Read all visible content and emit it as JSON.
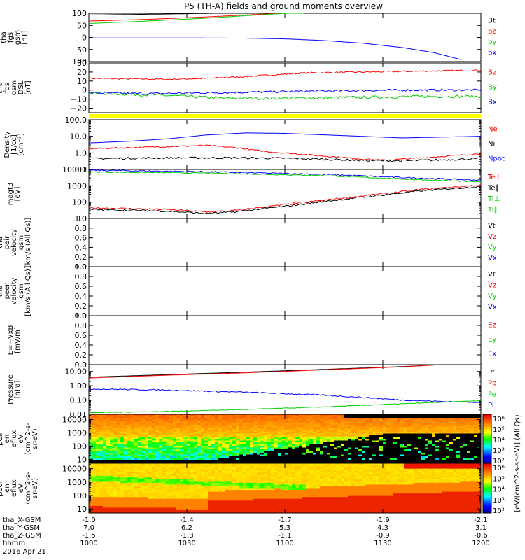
{
  "title": "P5 (TH-A) fields and ground moments overview",
  "footer": {
    "rows": [
      {
        "label": "tha_X-GSM",
        "values": [
          "7.0",
          "6.2",
          "5.3",
          "4.3",
          "3.1"
        ]
      },
      {
        "label": "tha_Y-GSM",
        "values": [
          "-1.5",
          "-1.3",
          "-1.1",
          "-0.9",
          "-0.6"
        ]
      },
      {
        "label": "tha_Z-GSM",
        "values": [
          "1000",
          "1030",
          "1100",
          "1130",
          "1200"
        ]
      },
      {
        "label": "hhmm",
        "values": []
      }
    ],
    "first_row_values": [
      "-1.0",
      "-1.4",
      "-1.7",
      "-1.9",
      "-2.1"
    ],
    "date": "2016 Apr 21"
  },
  "colorbar": {
    "label": "[eV/(cm^2-s-sr-eV)] (All Qs)",
    "upper_ticks": [
      "10⁶",
      "10⁵",
      "10⁴",
      "10³",
      "10²"
    ],
    "lower_ticks": [
      "10⁶",
      "10⁵",
      "10⁴",
      "10³",
      "10²"
    ]
  },
  "chart_data": {
    "type": "line",
    "time_range": [
      "1000",
      "1200"
    ],
    "time_ticks": [
      "1000",
      "1030",
      "1100",
      "1130",
      "1200"
    ],
    "panels": [
      {
        "id": "p1",
        "ylabel": [
          "tha",
          "fgs",
          "gsm",
          "[nT]"
        ],
        "ylim": [
          -100,
          100
        ],
        "log": false,
        "yticks": [
          {
            "v": 100,
            "t": "100"
          },
          {
            "v": 50,
            "t": "50"
          },
          {
            "v": 0,
            "t": "0"
          },
          {
            "v": -50,
            "t": "−50"
          },
          {
            "v": -100,
            "t": "−100"
          }
        ],
        "legend": [
          {
            "label": "Bt",
            "color": "#000000"
          },
          {
            "label": "bz",
            "color": "#ff0000"
          },
          {
            "label": "by",
            "color": "#00cc00"
          },
          {
            "label": "bx",
            "color": "#0000ff"
          }
        ],
        "series": [
          {
            "color": "#000000",
            "t": [
              0,
              0.2,
              0.4,
              0.55,
              0.62
            ],
            "y": [
              93,
              97,
              102,
              106,
              108
            ]
          },
          {
            "color": "#ff0000",
            "t": [
              0,
              0.15,
              0.3,
              0.45,
              0.53
            ],
            "y": [
              68,
              75,
              85,
              97,
              104
            ]
          },
          {
            "color": "#00cc00",
            "t": [
              0,
              0.15,
              0.3,
              0.45,
              0.55
            ],
            "y": [
              58,
              68,
              80,
              95,
              104
            ]
          },
          {
            "color": "#0000ff",
            "t": [
              0,
              0.2,
              0.4,
              0.5,
              0.6,
              0.7,
              0.8,
              0.88,
              0.95
            ],
            "y": [
              -2,
              -2,
              -3,
              -6,
              -13,
              -24,
              -42,
              -63,
              -92
            ]
          }
        ]
      },
      {
        "id": "p2",
        "ylabel": [
          "tha",
          "fgs",
          "gsm",
          "DSL",
          "[nT]"
        ],
        "ylim": [
          -25,
          30
        ],
        "log": false,
        "yticks": [
          {
            "v": 30,
            "t": "30"
          },
          {
            "v": 20,
            "t": "20"
          },
          {
            "v": 10,
            "t": "10"
          },
          {
            "v": 0,
            "t": "0"
          },
          {
            "v": -10,
            "t": "−10"
          },
          {
            "v": -20,
            "t": "−20"
          }
        ],
        "legend": [
          {
            "label": "Bz",
            "color": "#ff0000"
          },
          {
            "label": "By",
            "color": "#00cc00"
          },
          {
            "label": "Bx",
            "color": "#0000ff"
          }
        ],
        "series": [
          {
            "color": "#ff0000",
            "noise": 0.8,
            "t": [
              0,
              0.2,
              0.3,
              0.4,
              0.55,
              0.7,
              0.85,
              1
            ],
            "y": [
              13,
              12,
              13,
              15,
              19,
              20,
              21,
              22
            ]
          },
          {
            "color": "#00cc00",
            "noise": 1.6,
            "t": [
              0,
              0.2,
              0.35,
              0.5,
              0.7,
              0.85,
              1
            ],
            "y": [
              -3,
              -6,
              -9,
              -9,
              -8,
              -7,
              -7
            ]
          },
          {
            "color": "#0000ff",
            "noise": 1.2,
            "t": [
              0,
              0.15,
              0.3,
              0.45,
              0.6,
              0.8,
              1
            ],
            "y": [
              -3,
              -4,
              -3,
              -2,
              -1,
              0,
              0
            ]
          }
        ]
      },
      {
        "id": "p3",
        "ylabel": [
          "Density",
          "[1/cc]",
          "[cm⁻³]"
        ],
        "ylim": [
          0.1,
          100
        ],
        "log": true,
        "yticks": [
          {
            "v": 100,
            "t": "100.0"
          },
          {
            "v": 10,
            "t": "10.0"
          },
          {
            "v": 1,
            "t": "1.0"
          },
          {
            "v": 0.1,
            "t": "0.1"
          }
        ],
        "legend": [
          {
            "label": "Ne",
            "color": "#ff0000"
          },
          {
            "label": "Ni",
            "color": "#000000"
          },
          {
            "label": "Npot",
            "color": "#0000ff"
          }
        ],
        "series": [
          {
            "color": "#0000ff",
            "t": [
              0,
              0.1,
              0.2,
              0.3,
              0.4,
              0.5,
              0.65,
              0.8,
              1
            ],
            "y": [
              4,
              5,
              7,
              12,
              16,
              15,
              11,
              8,
              10
            ]
          },
          {
            "color": "#ff0000",
            "noise": 0.04,
            "t": [
              0,
              0.15,
              0.3,
              0.38,
              0.45,
              0.55,
              0.7,
              0.75,
              0.85,
              1
            ],
            "y": [
              1.8,
              2.2,
              2.8,
              2.0,
              1.2,
              0.8,
              0.42,
              0.36,
              0.5,
              0.9
            ]
          },
          {
            "color": "#000000",
            "noise": 0.06,
            "t": [
              0,
              0.2,
              0.4,
              0.55,
              0.7,
              0.8,
              0.9,
              1
            ],
            "y": [
              0.45,
              0.5,
              0.5,
              0.45,
              0.35,
              0.33,
              0.38,
              0.45
            ]
          }
        ]
      },
      {
        "id": "p4",
        "ylabel": [
          "magt3",
          "[eV]"
        ],
        "ylim": [
          10,
          10000
        ],
        "log": true,
        "yticks": [
          {
            "v": 10000,
            "t": "10000"
          },
          {
            "v": 1000,
            "t": "1000"
          },
          {
            "v": 100,
            "t": "100"
          },
          {
            "v": 10,
            "t": "10"
          }
        ],
        "legend": [
          {
            "label": "Te⊥",
            "color": "#ff0000"
          },
          {
            "label": "Te∥",
            "color": "#000000"
          },
          {
            "label": "Ti⊥",
            "color": "#00cc00"
          },
          {
            "label": "Ti∥",
            "color": "#00cc00"
          }
        ],
        "series": [
          {
            "color": "#0000ff",
            "noise": 0.04,
            "t": [
              0,
              0.3,
              0.6,
              0.8,
              1
            ],
            "y": [
              9000,
              7200,
              5000,
              3200,
              2200
            ]
          },
          {
            "color": "#00cc00",
            "noise": 0.03,
            "t": [
              0,
              0.3,
              0.6,
              0.8,
              1
            ],
            "y": [
              7000,
              6000,
              4200,
              2600,
              1700
            ]
          },
          {
            "color": "#ff0000",
            "noise": 0.05,
            "t": [
              0,
              0.1,
              0.2,
              0.3,
              0.37,
              0.5,
              0.6,
              0.7,
              0.85,
              1
            ],
            "y": [
              45,
              40,
              35,
              25,
              30,
              70,
              130,
              240,
              600,
              1100
            ]
          },
          {
            "color": "#000000",
            "noise": 0.05,
            "t": [
              0,
              0.1,
              0.2,
              0.3,
              0.37,
              0.5,
              0.6,
              0.7,
              0.85,
              1
            ],
            "y": [
              35,
              32,
              28,
              20,
              25,
              55,
              110,
              200,
              500,
              900
            ]
          }
        ]
      },
      {
        "id": "p5",
        "ylabel": [
          "tha",
          "peir",
          "velocity",
          "gsm",
          "[km/s (All Qs)]"
        ],
        "ylim": [
          0,
          1
        ],
        "log": false,
        "yticks": [
          {
            "v": 1,
            "t": "1.0"
          },
          {
            "v": 0.8,
            "t": "0.8"
          },
          {
            "v": 0.6,
            "t": "0.6"
          },
          {
            "v": 0.4,
            "t": "0.4"
          },
          {
            "v": 0.2,
            "t": "0.2"
          },
          {
            "v": 0,
            "t": "0.0"
          }
        ],
        "legend": [
          {
            "label": "Vt",
            "color": "#000000"
          },
          {
            "label": "Vz",
            "color": "#ff0000"
          },
          {
            "label": "Vy",
            "color": "#00cc00"
          },
          {
            "label": "Vx",
            "color": "#0000ff"
          }
        ],
        "series": []
      },
      {
        "id": "p6",
        "ylabel": [
          "tha",
          "peer",
          "velocity",
          "gsm",
          "[km/s (All Qs)]"
        ],
        "ylim": [
          0,
          1
        ],
        "log": false,
        "yticks": [
          {
            "v": 1,
            "t": "1.0"
          },
          {
            "v": 0.8,
            "t": "0.8"
          },
          {
            "v": 0.6,
            "t": "0.6"
          },
          {
            "v": 0.4,
            "t": "0.4"
          },
          {
            "v": 0.2,
            "t": "0.2"
          },
          {
            "v": 0,
            "t": "0.0"
          }
        ],
        "legend": [
          {
            "label": "Vt",
            "color": "#000000"
          },
          {
            "label": "Vz",
            "color": "#ff0000"
          },
          {
            "label": "Vy",
            "color": "#00cc00"
          },
          {
            "label": "Vx",
            "color": "#0000ff"
          }
        ],
        "series": []
      },
      {
        "id": "p7",
        "ylabel": [
          "E=−VxB",
          "[mV/m]"
        ],
        "ylim": [
          0,
          1
        ],
        "log": false,
        "yticks": [
          {
            "v": 1,
            "t": "1.0"
          },
          {
            "v": 0.8,
            "t": "0.8"
          },
          {
            "v": 0.6,
            "t": "0.6"
          },
          {
            "v": 0.4,
            "t": "0.4"
          },
          {
            "v": 0.2,
            "t": "0.2"
          },
          {
            "v": 0,
            "t": "0.0"
          }
        ],
        "legend": [
          {
            "label": "Ez",
            "color": "#ff0000"
          },
          {
            "label": "Ey",
            "color": "#00cc00"
          },
          {
            "label": "Ex",
            "color": "#0000ff"
          }
        ],
        "series": []
      },
      {
        "id": "p8",
        "ylabel": [
          "Pressure",
          "[nPa]"
        ],
        "ylim": [
          0.01,
          30
        ],
        "log": true,
        "yticks": [
          {
            "v": 10,
            "t": "10.00"
          },
          {
            "v": 1,
            "t": "1.00"
          },
          {
            "v": 0.1,
            "t": "0.10"
          },
          {
            "v": 0.01,
            "t": "0.01"
          }
        ],
        "legend": [
          {
            "label": "Pt",
            "color": "#000000"
          },
          {
            "label": "Pb",
            "color": "#ff0000"
          },
          {
            "label": "Pe",
            "color": "#00cc00"
          },
          {
            "label": "Pi",
            "color": "#0000ff"
          }
        ],
        "series": [
          {
            "color": "#000000",
            "t": [
              0,
              0.2,
              0.4,
              0.6,
              0.8,
              0.9
            ],
            "y": [
              4,
              6,
              9,
              14,
              22,
              30
            ]
          },
          {
            "color": "#ff0000",
            "t": [
              0,
              0.2,
              0.4,
              0.6,
              0.8,
              0.88
            ],
            "y": [
              3.5,
              5.5,
              8,
              13,
              21,
              28
            ]
          },
          {
            "color": "#0000ff",
            "noise": 0.04,
            "t": [
              0,
              0.2,
              0.4,
              0.6,
              0.7,
              0.8,
              0.9,
              1
            ],
            "y": [
              0.6,
              0.5,
              0.35,
              0.22,
              0.15,
              0.1,
              0.08,
              0.07
            ]
          },
          {
            "color": "#00cc00",
            "noise": 0.02,
            "t": [
              0,
              0.2,
              0.4,
              0.6,
              0.8,
              1
            ],
            "y": [
              0.013,
              0.016,
              0.022,
              0.033,
              0.055,
              0.09
            ]
          }
        ]
      },
      {
        "id": "p9",
        "type": "heatmap",
        "ylabel": [
          "tha",
          "peir",
          "en",
          "eflux",
          "eV",
          "(cm^2-s-",
          "sr-eV)"
        ],
        "ylim": [
          5,
          25000
        ],
        "log": true,
        "yticks": [
          {
            "v": 10000,
            "t": "10000"
          },
          {
            "v": 1000,
            "t": "1000"
          },
          {
            "v": 100,
            "t": "100"
          },
          {
            "v": 10,
            "t": "10"
          }
        ]
      },
      {
        "id": "p10",
        "type": "heatmap",
        "ylabel": [
          "tha",
          "peer",
          "en",
          "eflux",
          "eV",
          "(cm^2-s-",
          "sr-eV)"
        ],
        "ylim": [
          5,
          25000
        ],
        "log": true,
        "yticks": [
          {
            "v": 10000,
            "t": "10000"
          },
          {
            "v": 1000,
            "t": "1000"
          },
          {
            "v": 100,
            "t": "100"
          },
          {
            "v": 10,
            "t": "10"
          }
        ]
      }
    ]
  }
}
